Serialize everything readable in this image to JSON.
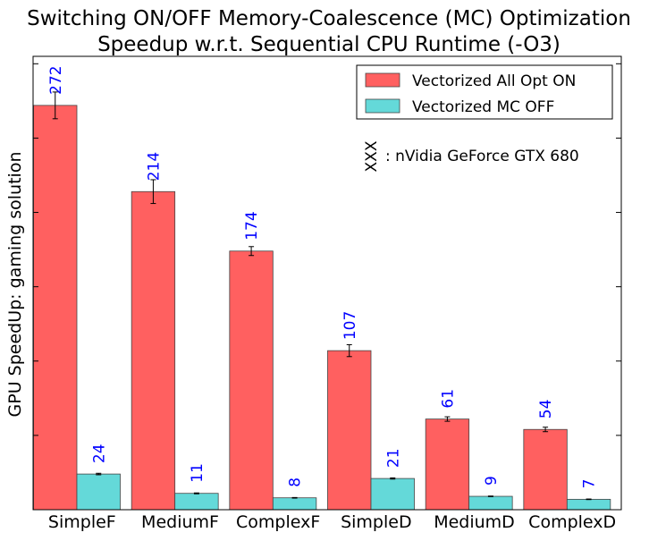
{
  "chart_data": {
    "type": "bar",
    "title": "Switching ON/OFF Memory-Coalescence (MC) Optimization",
    "subtitle": "Speedup w.r.t. Sequential CPU Runtime (-O3)",
    "ylabel": "GPU SpeedUp: gaming solution",
    "xlabel": "",
    "categories": [
      "SimpleF",
      "MediumF",
      "ComplexF",
      "SimpleD",
      "MediumD",
      "ComplexD"
    ],
    "ylim": [
      0,
      305
    ],
    "series": [
      {
        "name": "Vectorized All Opt ON",
        "color": "#ff6060",
        "values": [
          272,
          214,
          174,
          107,
          61,
          54
        ],
        "labels": [
          "272",
          "214",
          "174",
          "107",
          "61",
          "54"
        ],
        "errors": [
          9,
          8,
          3,
          4,
          1.5,
          1.5
        ]
      },
      {
        "name": "Vectorized MC OFF",
        "color": "#64d9d9",
        "values": [
          24,
          11,
          8,
          21,
          9,
          7
        ],
        "labels": [
          "24",
          "11",
          "8",
          "21",
          "9",
          "7"
        ],
        "errors": [
          0.5,
          0.3,
          0.2,
          0.4,
          0.2,
          0.2
        ]
      }
    ],
    "legend_position": "top-right",
    "annotation": {
      "marker": "XXX",
      "text": ": nVidia GeForce GTX 680"
    },
    "grid": false
  }
}
